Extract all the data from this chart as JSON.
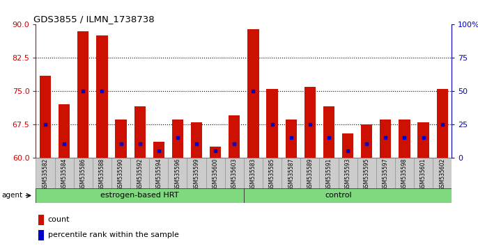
{
  "title": "GDS3855 / ILMN_1738738",
  "samples": [
    "GSM535582",
    "GSM535584",
    "GSM535586",
    "GSM535588",
    "GSM535590",
    "GSM535592",
    "GSM535594",
    "GSM535596",
    "GSM535599",
    "GSM535600",
    "GSM535603",
    "GSM535583",
    "GSM535585",
    "GSM535587",
    "GSM535589",
    "GSM535591",
    "GSM535593",
    "GSM535595",
    "GSM535597",
    "GSM535598",
    "GSM535601",
    "GSM535602"
  ],
  "red_heights": [
    78.5,
    72.0,
    88.5,
    87.5,
    68.5,
    71.5,
    63.5,
    68.5,
    68.0,
    62.5,
    69.5,
    89.0,
    75.5,
    68.5,
    76.0,
    71.5,
    65.5,
    67.5,
    68.5,
    68.5,
    68.0,
    75.5
  ],
  "blue_pct": [
    25,
    10,
    50,
    50,
    10,
    10,
    5,
    15,
    10,
    5,
    10,
    50,
    25,
    15,
    25,
    15,
    5,
    10,
    15,
    15,
    15,
    25
  ],
  "group1_count": 11,
  "group2_count": 11,
  "group1_label": "estrogen-based HRT",
  "group2_label": "control",
  "group_color": "#7FD97F",
  "group_edge_color": "#333333",
  "ymin": 60,
  "ymax": 90,
  "y_ticks_left": [
    60,
    67.5,
    75,
    82.5,
    90
  ],
  "y_ticks_right": [
    0,
    25,
    50,
    75,
    100
  ],
  "left_tick_color": "#cc0000",
  "right_tick_color": "#0000bb",
  "bar_color": "#cc1100",
  "dot_color": "#0000cc",
  "ticklabel_bg": "#cccccc",
  "agent_label": "agent",
  "legend_count": "count",
  "legend_pct": "percentile rank within the sample"
}
